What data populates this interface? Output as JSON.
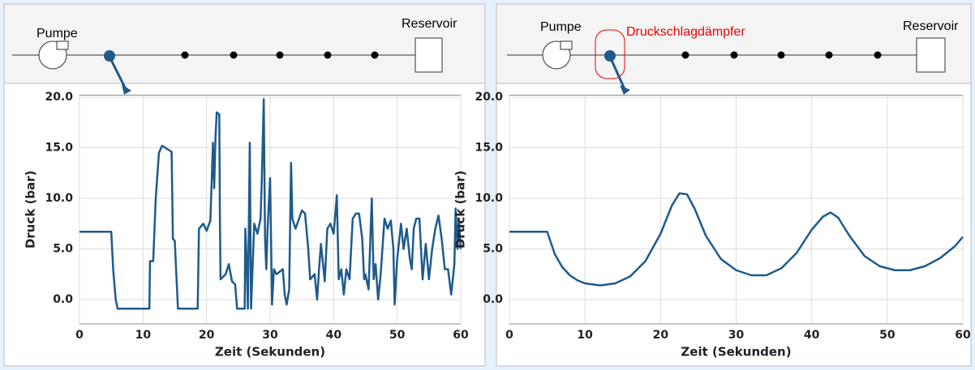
{
  "chart_data": [
    {
      "type": "line",
      "annotations": [
        "Pumpe",
        "Reservoir"
      ],
      "xlabel": "Zeit (Sekunden)",
      "ylabel": "Druck (bar)",
      "xlim": [
        0,
        60
      ],
      "xticks": [
        0,
        10,
        20,
        30,
        40,
        50,
        60
      ],
      "ylim": [
        -2.4,
        20.2
      ],
      "yticks": [
        {
          "value": 0,
          "label": "0.0"
        },
        {
          "value": 5,
          "label": "5.0"
        },
        {
          "value": 10,
          "label": "10.0"
        },
        {
          "value": 15,
          "label": "15.0"
        },
        {
          "value": 20,
          "label": "20.0"
        }
      ],
      "grid": true,
      "x": [
        0,
        5,
        5.3,
        5.7,
        6,
        11,
        11.1,
        11.6,
        12,
        12.5,
        13,
        13.5,
        14.5,
        14.7,
        15,
        15.2,
        15.5,
        18.6,
        18.8,
        19.5,
        20,
        20.6,
        21,
        21.2,
        21.4,
        21.6,
        22,
        22.1,
        22.2,
        23,
        23.5,
        24,
        24.5,
        24.8,
        26,
        26.1,
        26.3,
        26.5,
        26.8,
        27,
        27.5,
        28,
        28.5,
        28.7,
        29,
        29.2,
        29.4,
        29.6,
        30,
        30.3,
        30.6,
        31,
        32,
        32.3,
        32.6,
        33,
        33.3,
        33.5,
        34,
        35,
        35.5,
        36,
        36.3,
        37,
        37.4,
        37.7,
        38,
        38.6,
        39,
        39.5,
        40,
        40.5,
        40.8,
        41.2,
        41.6,
        42,
        42.5,
        43,
        43.5,
        44,
        44.5,
        44.8,
        45,
        45.5,
        46,
        46.3,
        46.6,
        47,
        47.4,
        48,
        48.5,
        49,
        49.4,
        49.6,
        50,
        50.6,
        51,
        51.5,
        52,
        52.3,
        52.6,
        53,
        53.5,
        54,
        54.5,
        55,
        55.5,
        56,
        56.5,
        57,
        57.5,
        58,
        58.5,
        59,
        59.2,
        59.5,
        59.7,
        60
      ],
      "series": [
        {
          "color": "#1f5a8c",
          "values": [
            6.7,
            6.7,
            3,
            0,
            -0.9,
            -0.9,
            3.8,
            3.8,
            10,
            14.5,
            15.2,
            15,
            14.6,
            6,
            5.8,
            3,
            -0.9,
            -0.9,
            7,
            7.5,
            6.8,
            7.8,
            15.5,
            11,
            16,
            18.5,
            18.3,
            8,
            2,
            2.5,
            3.5,
            1.8,
            1.5,
            -0.9,
            -0.9,
            7,
            4,
            -0.9,
            15.5,
            -0.9,
            7.5,
            6.5,
            8,
            12,
            19.8,
            6,
            3,
            7,
            12,
            -0.5,
            3,
            2.5,
            3,
            0.5,
            -0.5,
            1,
            13.5,
            8,
            7,
            8.8,
            8.5,
            5,
            2,
            2.5,
            0,
            3,
            5.5,
            1.8,
            7,
            7.5,
            6.5,
            10.3,
            2,
            3,
            0.5,
            3,
            2,
            8,
            8.5,
            8.5,
            6,
            2,
            2.5,
            1,
            10,
            2,
            3.5,
            0,
            2.5,
            8,
            7,
            7.8,
            5,
            -0.5,
            4,
            7.5,
            5,
            7,
            4,
            3,
            7,
            8,
            8,
            2,
            5.5,
            2,
            5,
            7,
            8.3,
            6,
            3,
            3,
            0.5,
            3.5,
            9,
            5,
            8,
            5
          ]
        }
      ]
    },
    {
      "type": "line",
      "annotations": [
        "Pumpe",
        "Druckschlagdämpfer",
        "Reservoir"
      ],
      "xlabel": "Zeit (Sekunden)",
      "ylabel": "Druck (bar)",
      "xlim": [
        0,
        60
      ],
      "xticks": [
        0,
        10,
        20,
        30,
        40,
        50,
        60
      ],
      "ylim": [
        -2.4,
        20.2
      ],
      "yticks": [
        {
          "value": 0,
          "label": "0.0"
        },
        {
          "value": 5,
          "label": "5.0"
        },
        {
          "value": 10,
          "label": "10.0"
        },
        {
          "value": 15,
          "label": "15.0"
        },
        {
          "value": 20,
          "label": "20.0"
        }
      ],
      "grid": true,
      "x": [
        0,
        5,
        6,
        7,
        8,
        9,
        10,
        12,
        14,
        16,
        18,
        20,
        21.5,
        22.5,
        23.5,
        24.5,
        26,
        28,
        30,
        32,
        34,
        36,
        38,
        40,
        41.5,
        42.5,
        43.5,
        45,
        47,
        49,
        51,
        53,
        55,
        57,
        59,
        60
      ],
      "series": [
        {
          "color": "#1f5a8c",
          "values": [
            6.7,
            6.7,
            4.5,
            3.2,
            2.4,
            1.9,
            1.6,
            1.4,
            1.6,
            2.3,
            3.8,
            6.5,
            9.3,
            10.5,
            10.4,
            9,
            6.3,
            4,
            2.9,
            2.4,
            2.4,
            3.1,
            4.6,
            6.9,
            8.2,
            8.6,
            8.1,
            6.3,
            4.3,
            3.3,
            2.9,
            2.9,
            3.3,
            4.1,
            5.3,
            6.2
          ]
        }
      ]
    }
  ]
}
